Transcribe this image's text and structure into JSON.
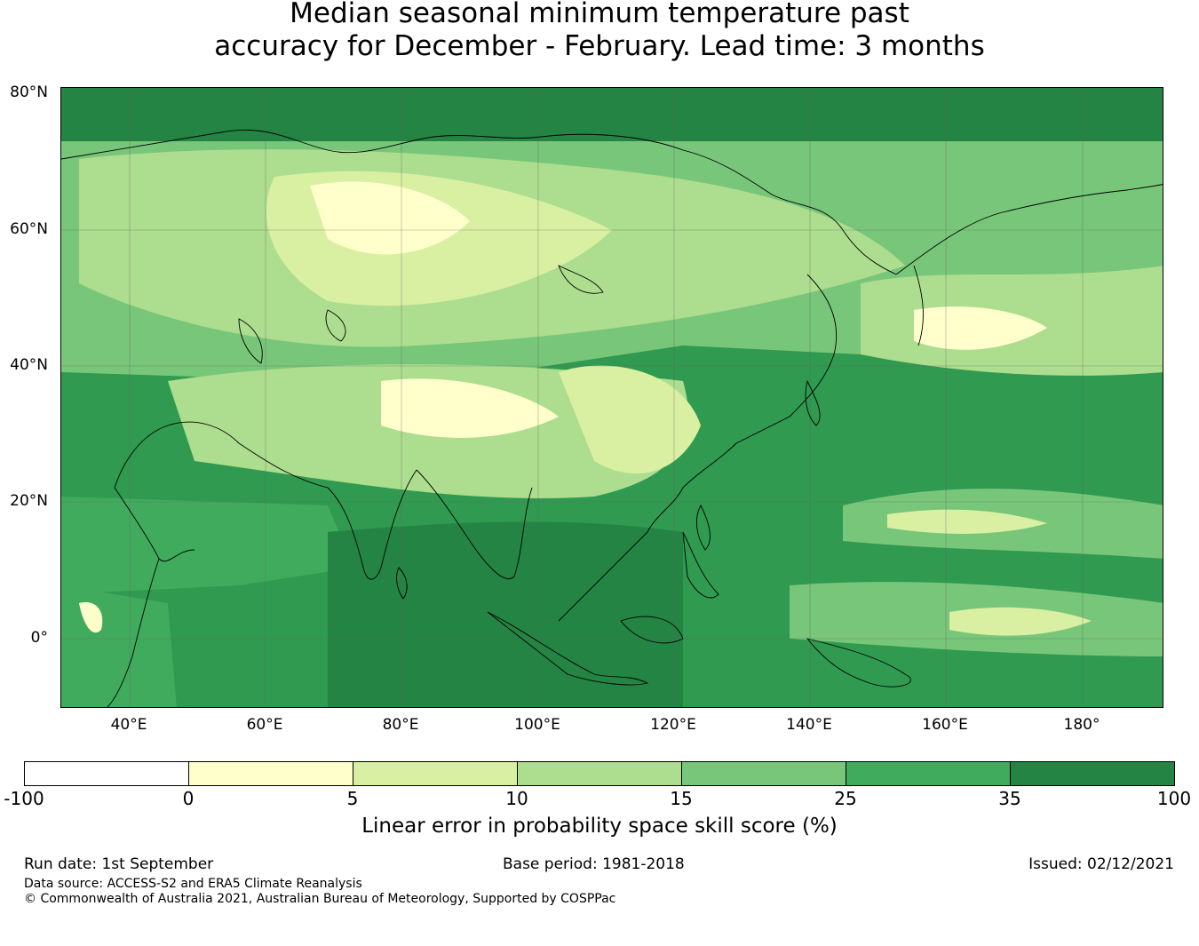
{
  "title": {
    "line1": "Median seasonal minimum temperature past",
    "line2": "accuracy for December - February. Lead time: 3 months"
  },
  "map": {
    "lat_labels": [
      "80°N",
      "60°N",
      "40°N",
      "20°N",
      "0°"
    ],
    "lon_labels": [
      "40°E",
      "60°E",
      "80°E",
      "100°E",
      "120°E",
      "140°E",
      "160°E",
      "180°"
    ],
    "ocean_color": "#2f9a50",
    "land_outline_color": "#000000"
  },
  "colorbar": {
    "ticks": [
      "-100",
      "0",
      "5",
      "10",
      "15",
      "25",
      "35",
      "100"
    ],
    "colors": [
      "#ffffff",
      "#ffffcc",
      "#d9f0a3",
      "#addd8e",
      "#78c679",
      "#41ab5d",
      "#238443"
    ],
    "label": "Linear error in probability space skill score (%)"
  },
  "footer": {
    "run_date": "Run date: 1st September",
    "base_period": "Base period: 1981-2018",
    "issued": "Issued: 02/12/2021",
    "data_source": "Data source: ACCESS-S2 and ERA5 Climate Reanalysis",
    "copyright": "© Commonwealth of Australia 2021, Australian Bureau of Meteorology, Supported by COSPPac"
  }
}
